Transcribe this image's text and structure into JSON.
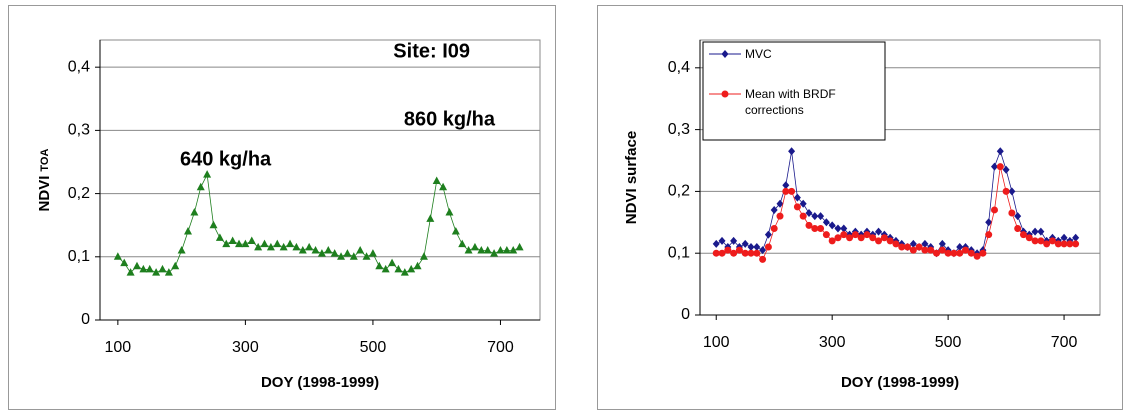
{
  "chart_data": [
    {
      "type": "scatter",
      "ylabel": "NDVI",
      "ylabel_subscript": "TOA",
      "xlabel": "DOY (1998-1999)",
      "annotations": [
        "Site: I09",
        "860 kg/ha",
        "640 kg/ha"
      ],
      "xlim": [
        72,
        762
      ],
      "xticks": [
        100,
        300,
        500,
        700
      ],
      "ylim": [
        0,
        0.443
      ],
      "yticks": [
        0,
        {
          "value": 0.1,
          "label": "0,1"
        },
        {
          "value": 0.2,
          "label": "0,2"
        },
        {
          "value": 0.3,
          "label": "0,3"
        },
        {
          "value": 0.4,
          "label": "0,4"
        }
      ],
      "grid": true,
      "series": [
        {
          "color": "#1e7f1e",
          "marker": "triangle",
          "x": [
            100,
            110,
            120,
            130,
            140,
            150,
            160,
            170,
            180,
            190,
            200,
            210,
            220,
            230,
            240,
            250,
            260,
            270,
            280,
            290,
            300,
            310,
            320,
            330,
            340,
            350,
            360,
            370,
            380,
            390,
            400,
            410,
            420,
            430,
            440,
            450,
            460,
            470,
            480,
            490,
            500,
            510,
            520,
            530,
            540,
            550,
            560,
            570,
            580,
            590,
            600,
            610,
            620,
            630,
            640,
            650,
            660,
            670,
            680,
            690,
            700,
            710,
            720,
            730
          ],
          "values": [
            0.1,
            0.09,
            0.075,
            0.085,
            0.08,
            0.08,
            0.075,
            0.08,
            0.075,
            0.085,
            0.11,
            0.14,
            0.17,
            0.21,
            0.23,
            0.15,
            0.13,
            0.12,
            0.125,
            0.12,
            0.12,
            0.125,
            0.115,
            0.12,
            0.115,
            0.12,
            0.115,
            0.12,
            0.115,
            0.11,
            0.115,
            0.11,
            0.105,
            0.11,
            0.105,
            0.1,
            0.105,
            0.1,
            0.11,
            0.1,
            0.105,
            0.085,
            0.08,
            0.09,
            0.08,
            0.075,
            0.08,
            0.085,
            0.1,
            0.16,
            0.22,
            0.21,
            0.17,
            0.14,
            0.12,
            0.11,
            0.115,
            0.11,
            0.11,
            0.105,
            0.11,
            0.11,
            0.11,
            0.115
          ]
        }
      ]
    },
    {
      "type": "line",
      "ylabel": "NDVI surface",
      "xlabel": "DOY (1998-1999)",
      "xlim": [
        72,
        762
      ],
      "xticks": [
        100,
        300,
        500,
        700
      ],
      "ylim": [
        0,
        0.445
      ],
      "yticks": [
        0,
        {
          "value": 0.1,
          "label": "0,1"
        },
        {
          "value": 0.2,
          "label": "0,2"
        },
        {
          "value": 0.3,
          "label": "0,3"
        },
        {
          "value": 0.4,
          "label": "0,4"
        }
      ],
      "grid": true,
      "legend": "upper left",
      "x": [
        100,
        110,
        120,
        130,
        140,
        150,
        160,
        170,
        180,
        190,
        200,
        210,
        220,
        230,
        240,
        250,
        260,
        270,
        280,
        290,
        300,
        310,
        320,
        330,
        340,
        350,
        360,
        370,
        380,
        390,
        400,
        410,
        420,
        430,
        440,
        450,
        460,
        470,
        480,
        490,
        500,
        510,
        520,
        530,
        540,
        550,
        560,
        570,
        580,
        590,
        600,
        610,
        620,
        630,
        640,
        650,
        660,
        670,
        680,
        690,
        700,
        710,
        720
      ],
      "series": [
        {
          "name": "MVC",
          "color": "#1a1a8c",
          "marker": "diamond",
          "values": [
            0.115,
            0.12,
            0.11,
            0.12,
            0.11,
            0.115,
            0.11,
            0.11,
            0.105,
            0.13,
            0.17,
            0.18,
            0.21,
            0.265,
            0.19,
            0.18,
            0.165,
            0.16,
            0.16,
            0.15,
            0.145,
            0.14,
            0.14,
            0.13,
            0.135,
            0.13,
            0.135,
            0.13,
            0.135,
            0.13,
            0.125,
            0.12,
            0.115,
            0.11,
            0.115,
            0.11,
            0.115,
            0.11,
            0.1,
            0.115,
            0.105,
            0.1,
            0.11,
            0.11,
            0.105,
            0.1,
            0.105,
            0.15,
            0.24,
            0.265,
            0.235,
            0.2,
            0.16,
            0.135,
            0.13,
            0.135,
            0.135,
            0.12,
            0.125,
            0.12,
            0.125,
            0.12,
            0.125
          ]
        },
        {
          "name": "Mean with BRDF corrections",
          "color": "#ee1c1c",
          "marker": "circle",
          "values": [
            0.1,
            0.1,
            0.105,
            0.1,
            0.105,
            0.1,
            0.1,
            0.1,
            0.09,
            0.11,
            0.14,
            0.16,
            0.2,
            0.2,
            0.175,
            0.16,
            0.145,
            0.14,
            0.14,
            0.13,
            0.12,
            0.125,
            0.13,
            0.125,
            0.13,
            0.125,
            0.13,
            0.125,
            0.12,
            0.125,
            0.12,
            0.115,
            0.11,
            0.11,
            0.105,
            0.11,
            0.105,
            0.105,
            0.1,
            0.105,
            0.1,
            0.1,
            0.1,
            0.105,
            0.1,
            0.095,
            0.1,
            0.13,
            0.17,
            0.24,
            0.2,
            0.165,
            0.14,
            0.13,
            0.125,
            0.12,
            0.12,
            0.115,
            0.12,
            0.115,
            0.115,
            0.115,
            0.115
          ]
        }
      ]
    }
  ]
}
